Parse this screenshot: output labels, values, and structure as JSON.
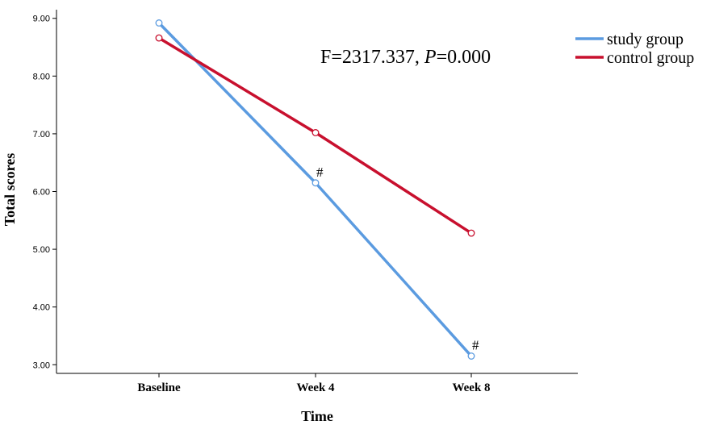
{
  "chart_data": {
    "type": "line",
    "categories": [
      "Baseline",
      "Week 4",
      "Week 8"
    ],
    "series": [
      {
        "name": "study group",
        "color": "#5B9BE0",
        "values": [
          8.92,
          6.15,
          3.15
        ],
        "point_labels": [
          "",
          "#",
          "#"
        ]
      },
      {
        "name": "control group",
        "color": "#C8102E",
        "values": [
          8.66,
          7.02,
          5.28
        ],
        "point_labels": [
          "",
          "",
          ""
        ]
      }
    ],
    "xlabel": "Time",
    "ylabel": "Total scores",
    "ylim": [
      2.85,
      9.15
    ],
    "yticks": [
      3.0,
      4.0,
      5.0,
      6.0,
      7.0,
      8.0,
      9.0
    ],
    "ytick_labels": [
      "3.00",
      "4.00",
      "5.00",
      "6.00",
      "7.00",
      "8.00",
      "9.00"
    ],
    "annotation": {
      "prefix": "F=2317.337, ",
      "p_symbol": "P",
      "suffix": "=0.000"
    },
    "legend_position": "top-right",
    "grid": false
  }
}
